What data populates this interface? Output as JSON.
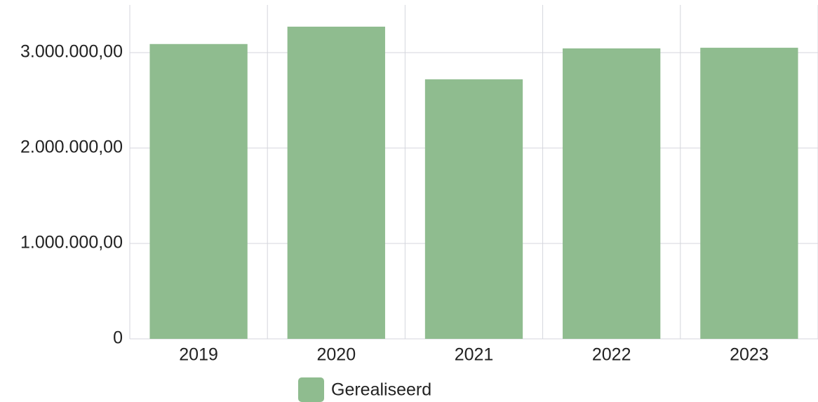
{
  "chart_data": {
    "type": "bar",
    "categories": [
      "2019",
      "2020",
      "2021",
      "2022",
      "2023"
    ],
    "series": [
      {
        "name": "Gerealiseerd",
        "color": "#8fbc8f",
        "values": [
          3090000,
          3272000,
          2720000,
          3044000,
          3051000
        ]
      }
    ],
    "ylim": [
      0,
      3500000
    ],
    "yticks": [
      0,
      {
        "value": 1000000,
        "label": "1.000.000,00"
      },
      {
        "value": 2000000,
        "label": "2.000.000,00"
      },
      {
        "value": 3000000,
        "label": "3.000.000,00"
      }
    ],
    "grid": true,
    "legend": "bottom"
  }
}
